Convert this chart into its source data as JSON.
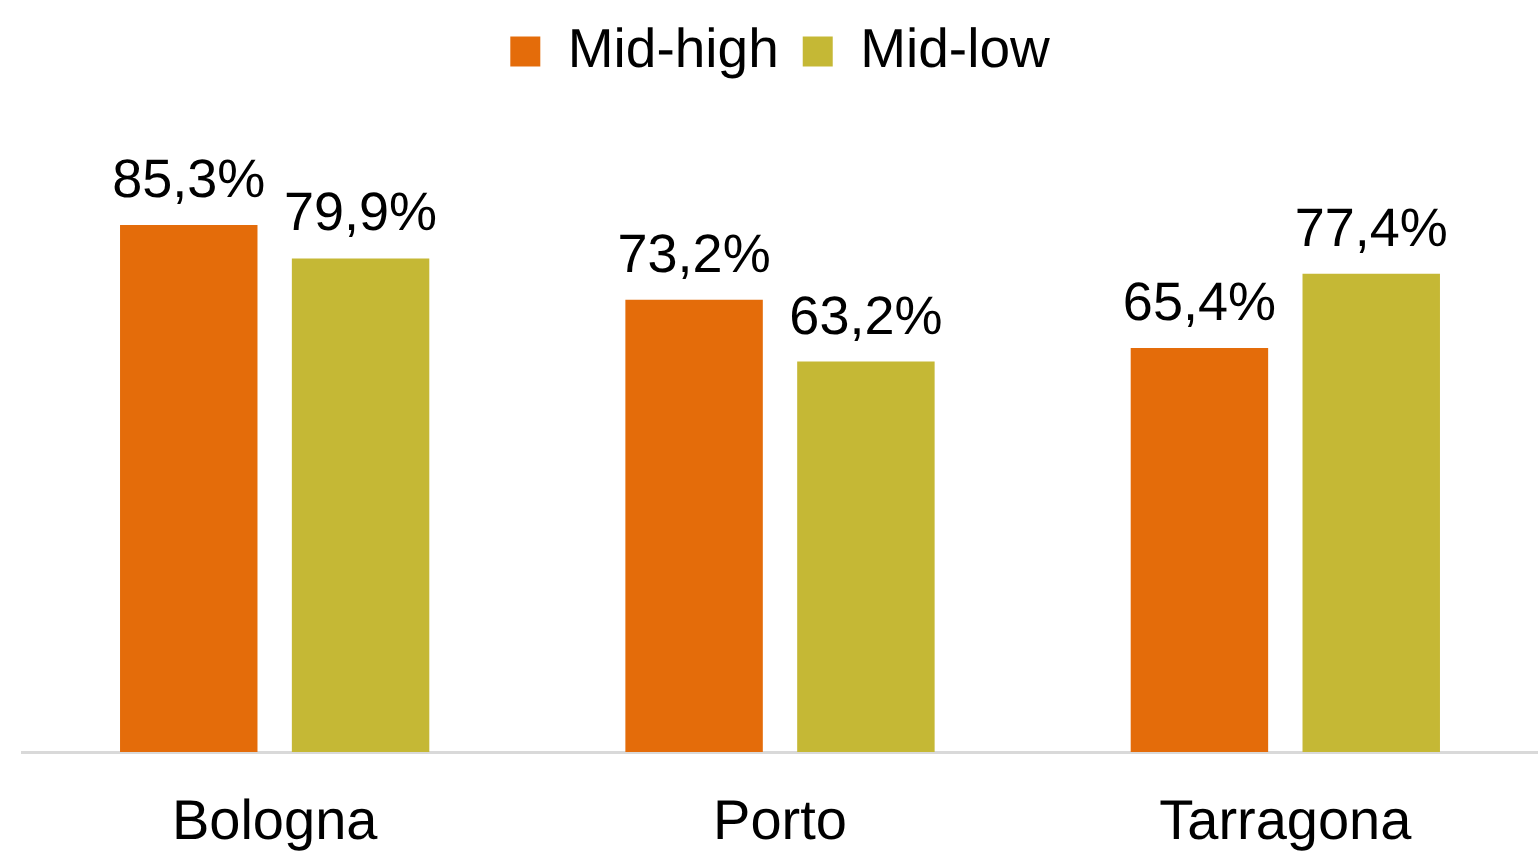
{
  "chart_data": {
    "type": "bar",
    "categories": [
      "Bologna",
      "Porto",
      "Tarragona"
    ],
    "series": [
      {
        "name": "Mid-high",
        "color": "#e46c0a",
        "values": [
          85.3,
          73.2,
          65.4
        ],
        "value_labels": [
          "85,3%",
          "73,2%",
          "65,4%"
        ]
      },
      {
        "name": "Mid-low",
        "color": "#c5b835",
        "values": [
          79.9,
          63.2,
          77.4
        ],
        "value_labels": [
          "79,9%",
          "63,2%",
          "77,4%"
        ]
      }
    ],
    "tick_labels": "x",
    "grid": false,
    "legend": "top"
  }
}
